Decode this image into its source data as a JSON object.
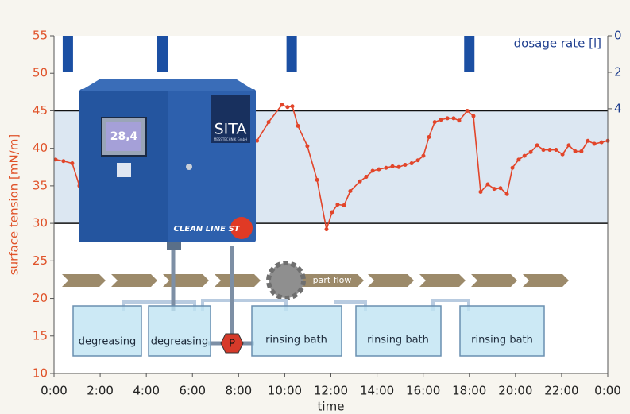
{
  "chart_data": {
    "type": "line",
    "ylabel": "surface tension [mN/m]",
    "xlabel": "time",
    "y2label": "dosage rate [l]",
    "xlim": [
      0,
      24
    ],
    "xticks": [
      {
        "value": 0,
        "label": "0:00"
      },
      {
        "value": 2,
        "label": "2:00"
      },
      {
        "value": 4,
        "label": "4:00"
      },
      {
        "value": 6,
        "label": "6:00"
      },
      {
        "value": 8,
        "label": "8:00"
      },
      {
        "value": 10,
        "label": "10:00"
      },
      {
        "value": 12,
        "label": "12:00"
      },
      {
        "value": 14,
        "label": "14:00"
      },
      {
        "value": 16,
        "label": "16:00"
      },
      {
        "value": 18,
        "label": "18:00"
      },
      {
        "value": 20,
        "label": "20:00"
      },
      {
        "value": 22,
        "label": "22:00"
      },
      {
        "value": 24,
        "label": "0:00"
      }
    ],
    "ylim": [
      10,
      55
    ],
    "yticks": [
      10,
      15,
      20,
      25,
      30,
      35,
      40,
      45,
      50,
      55
    ],
    "y2lim": [
      0,
      18.5
    ],
    "y2ticks": [
      0,
      2,
      4
    ],
    "y2_inverted": true,
    "target_range": [
      30,
      45
    ],
    "target_color": "#dce7f2",
    "grid": false,
    "series": [
      {
        "color": "#e2452a",
        "x": [
          0.07,
          0.41,
          0.79,
          1.1,
          null,
          8.8,
          9.3,
          9.88,
          10.12,
          10.33,
          10.57,
          10.98,
          11.4,
          11.81,
          12.05,
          12.29,
          12.57,
          12.84,
          13.26,
          13.53,
          13.81,
          14.08,
          14.39,
          14.67,
          14.94,
          15.22,
          15.5,
          15.77,
          16.01,
          16.25,
          16.5,
          16.77,
          17.05,
          17.32,
          17.56,
          17.91,
          18.18,
          18.49,
          18.8,
          19.08,
          19.35,
          19.63,
          19.87,
          20.14,
          20.39,
          20.66,
          20.94,
          21.21,
          21.49,
          21.76,
          22.04,
          22.31,
          22.59,
          22.86,
          23.14,
          23.42,
          23.73,
          24
        ],
        "values": [
          38.5,
          38.3,
          38.0,
          35.0,
          null,
          41.0,
          43.5,
          45.8,
          45.5,
          45.6,
          43.0,
          40.3,
          35.8,
          29.2,
          31.5,
          32.5,
          32.4,
          34.3,
          35.6,
          36.2,
          37.0,
          37.2,
          37.4,
          37.6,
          37.5,
          37.8,
          38.0,
          38.4,
          39.0,
          41.5,
          43.5,
          43.8,
          44.0,
          44.0,
          43.7,
          45.0,
          44.3,
          34.2,
          35.2,
          34.6,
          34.7,
          33.9,
          37.4,
          38.5,
          39.0,
          39.5,
          40.4,
          39.8,
          39.8,
          39.8,
          39.2,
          40.4,
          39.6,
          39.6,
          41.0,
          40.6,
          40.8,
          41.0
        ]
      },
      {
        "axis": "y2",
        "kind": "bar",
        "color": "#1b4fa3",
        "x": [
          0.6,
          4.7,
          10.3,
          18.0
        ],
        "values": [
          2,
          2,
          2,
          2
        ]
      }
    ]
  },
  "illustration": {
    "brand": "SITA",
    "brand_sub": "MESSTECHNIK GmbH",
    "display": "28,4",
    "model": "CLEAN LINE ST",
    "pump": "P",
    "flow": "part flow",
    "tanks": [
      "degreasing",
      "degreasing",
      "rinsing bath",
      "rinsing bath",
      "rinsing bath"
    ]
  }
}
